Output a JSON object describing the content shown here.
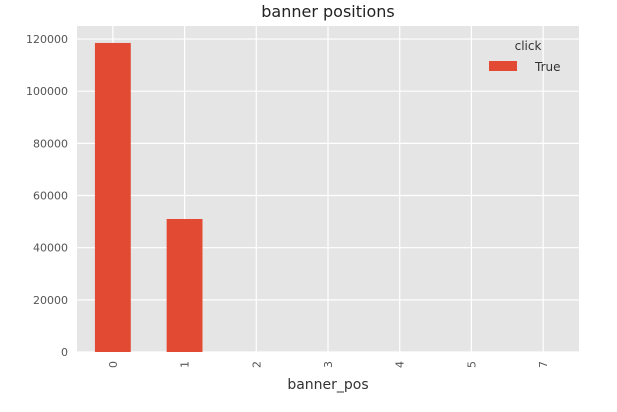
{
  "chart_data": {
    "type": "bar",
    "title": "banner positions",
    "xlabel": "banner_pos",
    "ylabel": "",
    "categories": [
      "0",
      "1",
      "2",
      "3",
      "4",
      "5",
      "7"
    ],
    "series": [
      {
        "name": "True",
        "values": [
          118500,
          51000,
          0,
          0,
          0,
          0,
          0
        ],
        "color": "#E24A33"
      }
    ],
    "ylim": [
      0,
      125000
    ],
    "yticks": [
      0,
      20000,
      40000,
      60000,
      80000,
      100000,
      120000
    ],
    "ytick_labels": [
      "0",
      "20000",
      "40000",
      "60000",
      "80000",
      "100000",
      "120000"
    ],
    "grid": true,
    "legend": {
      "title": "click",
      "placement": "top-right"
    },
    "colors": {
      "plot_background": "#E5E5E5",
      "grid": "#FFFFFF"
    }
  }
}
